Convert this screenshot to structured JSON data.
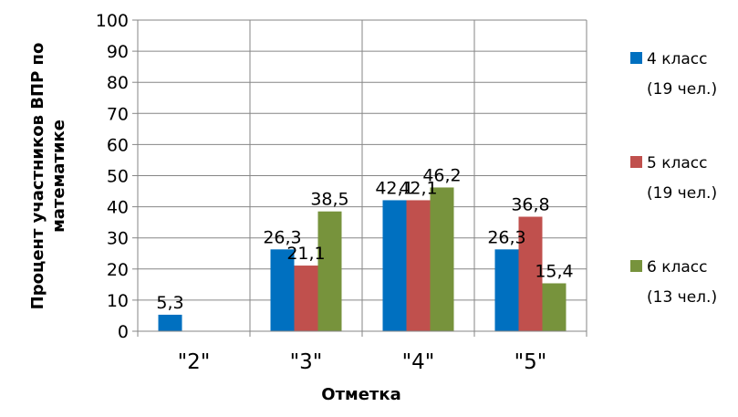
{
  "chart_data": {
    "type": "bar",
    "categories": [
      "\"2\"",
      "\"3\"",
      "\"4\"",
      "\"5\""
    ],
    "series": [
      {
        "name_line1": "4 класс",
        "name_line2": "(19 чел.)",
        "color": "#0070C0",
        "values": [
          5.3,
          26.3,
          42.1,
          26.3
        ],
        "labels": [
          "5,3",
          "26,3",
          "42,1",
          "26,3"
        ]
      },
      {
        "name_line1": "5 класс",
        "name_line2": "(19 чел.)",
        "color": "#C0504D",
        "values": [
          0,
          21.1,
          42.1,
          36.8
        ],
        "labels": [
          "",
          "21,1",
          "42,1",
          "36,8"
        ]
      },
      {
        "name_line1": "6 класс",
        "name_line2": "(13 чел.)",
        "color": "#77933C",
        "values": [
          0,
          38.5,
          46.2,
          15.4
        ],
        "labels": [
          "",
          "38,5",
          "46,2",
          "15,4"
        ]
      }
    ],
    "xlabel": "Отметка",
    "ylabel_line1": "Процент  участников ВПР по",
    "ylabel_line2": "математике",
    "ylim": [
      0,
      100
    ],
    "yticks": [
      0,
      10,
      20,
      30,
      40,
      50,
      60,
      70,
      80,
      90,
      100
    ],
    "grid": true,
    "legend_position": "right"
  }
}
